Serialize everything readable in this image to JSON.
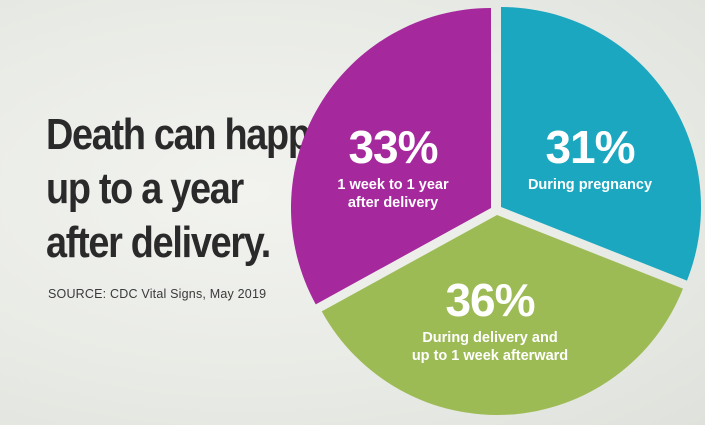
{
  "headline": {
    "line1": "Death can happen",
    "line2": "up to a year",
    "line3": "after delivery."
  },
  "source": "SOURCE: CDC Vital Signs, May 2019",
  "chart_data": {
    "type": "pie",
    "slices": [
      {
        "label_lines": [
          "During pregnancy"
        ],
        "value": 31,
        "display": "31%",
        "color": "#1ba7c0"
      },
      {
        "label_lines": [
          "During delivery and",
          "up to 1 week afterward"
        ],
        "value": 36,
        "display": "36%",
        "color": "#9dbb55"
      },
      {
        "label_lines": [
          "1 week to 1 year",
          "after delivery"
        ],
        "value": 33,
        "display": "33%",
        "color": "#a5289d"
      }
    ]
  }
}
